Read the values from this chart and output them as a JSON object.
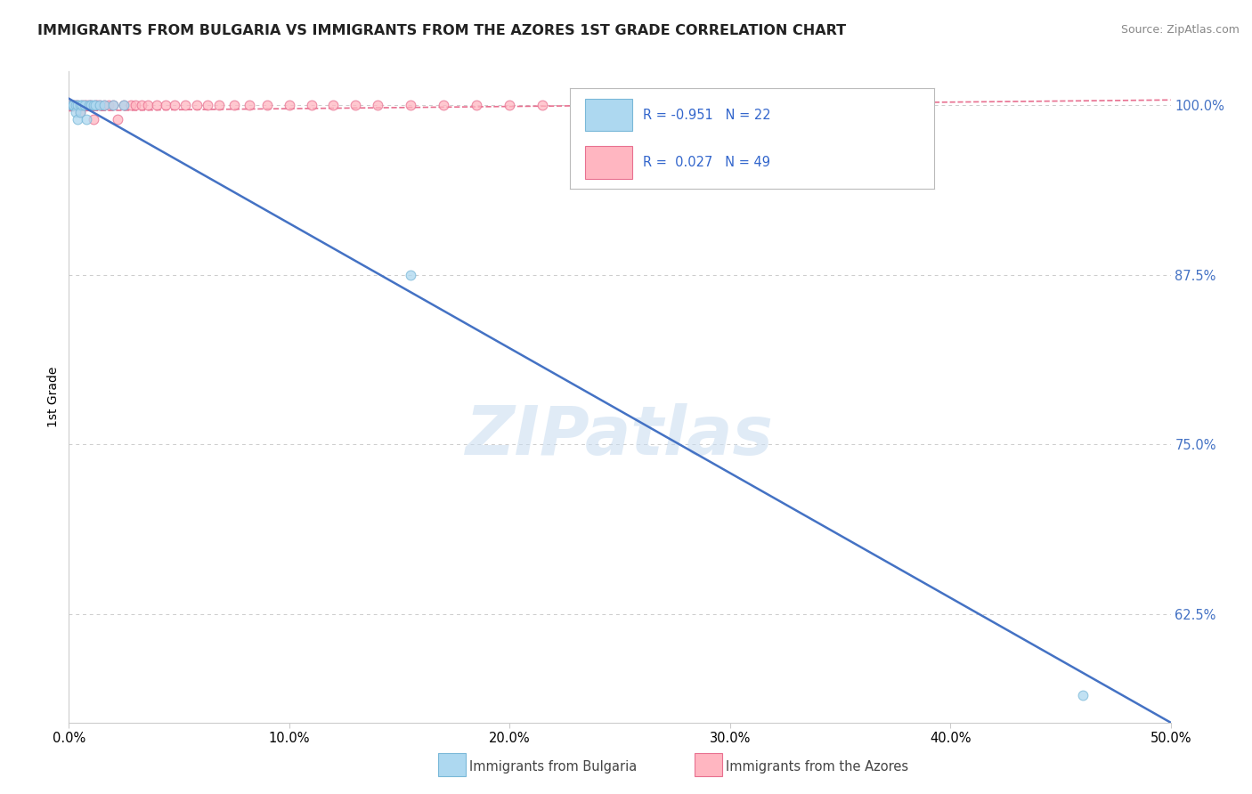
{
  "title": "IMMIGRANTS FROM BULGARIA VS IMMIGRANTS FROM THE AZORES 1ST GRADE CORRELATION CHART",
  "source": "Source: ZipAtlas.com",
  "ylabel": "1st Grade",
  "legend_label1": "Immigrants from Bulgaria",
  "legend_label2": "Immigrants from the Azores",
  "R1": -0.951,
  "N1": 22,
  "R2": 0.027,
  "N2": 49,
  "color_bulgaria_fill": "#ADD8F0",
  "color_bulgaria_edge": "#7AB8D8",
  "color_azores_fill": "#FFB6C1",
  "color_azores_edge": "#E87090",
  "line_color_bulgaria": "#4472C4",
  "line_color_azores": "#E87090",
  "xlim": [
    0.0,
    0.5
  ],
  "ylim": [
    0.545,
    1.025
  ],
  "xticks": [
    0.0,
    0.1,
    0.2,
    0.3,
    0.4,
    0.5
  ],
  "yticks_right": [
    0.625,
    0.75,
    0.875,
    1.0
  ],
  "bg_color": "#FFFFFF",
  "grid_color": "#CCCCCC",
  "watermark": "ZIPatlas",
  "tick_color_right": "#4472C4",
  "bulgaria_x": [
    0.001,
    0.002,
    0.002,
    0.003,
    0.003,
    0.004,
    0.004,
    0.005,
    0.005,
    0.006,
    0.007,
    0.008,
    0.009,
    0.01,
    0.011,
    0.012,
    0.014,
    0.016,
    0.02,
    0.025,
    0.155,
    0.46
  ],
  "bulgaria_y": [
    1.0,
    1.0,
    1.0,
    1.0,
    0.995,
    1.0,
    0.99,
    1.0,
    0.995,
    1.0,
    1.0,
    0.99,
    1.0,
    1.0,
    1.0,
    1.0,
    1.0,
    1.0,
    1.0,
    1.0,
    0.875,
    0.565
  ],
  "azores_x": [
    0.001,
    0.002,
    0.003,
    0.004,
    0.005,
    0.006,
    0.007,
    0.008,
    0.009,
    0.01,
    0.011,
    0.012,
    0.013,
    0.014,
    0.016,
    0.018,
    0.02,
    0.022,
    0.025,
    0.028,
    0.03,
    0.033,
    0.036,
    0.04,
    0.044,
    0.048,
    0.053,
    0.058,
    0.063,
    0.068,
    0.075,
    0.082,
    0.09,
    0.1,
    0.11,
    0.12,
    0.13,
    0.14,
    0.155,
    0.17,
    0.185,
    0.2,
    0.215,
    0.23,
    0.25,
    0.27,
    0.295,
    0.32,
    0.35
  ],
  "azores_y": [
    1.0,
    1.0,
    1.0,
    1.0,
    0.995,
    1.0,
    1.0,
    1.0,
    1.0,
    1.0,
    0.99,
    1.0,
    1.0,
    1.0,
    1.0,
    1.0,
    1.0,
    0.99,
    1.0,
    1.0,
    1.0,
    1.0,
    1.0,
    1.0,
    1.0,
    1.0,
    1.0,
    1.0,
    1.0,
    1.0,
    1.0,
    1.0,
    1.0,
    1.0,
    1.0,
    1.0,
    1.0,
    1.0,
    1.0,
    1.0,
    1.0,
    1.0,
    1.0,
    1.0,
    1.0,
    1.0,
    1.0,
    1.0,
    1.0
  ],
  "blue_line_x": [
    0.0,
    0.5
  ],
  "blue_line_y": [
    1.005,
    0.545
  ],
  "pink_line_x": [
    0.0,
    0.5
  ],
  "pink_line_y": [
    0.996,
    1.004
  ]
}
